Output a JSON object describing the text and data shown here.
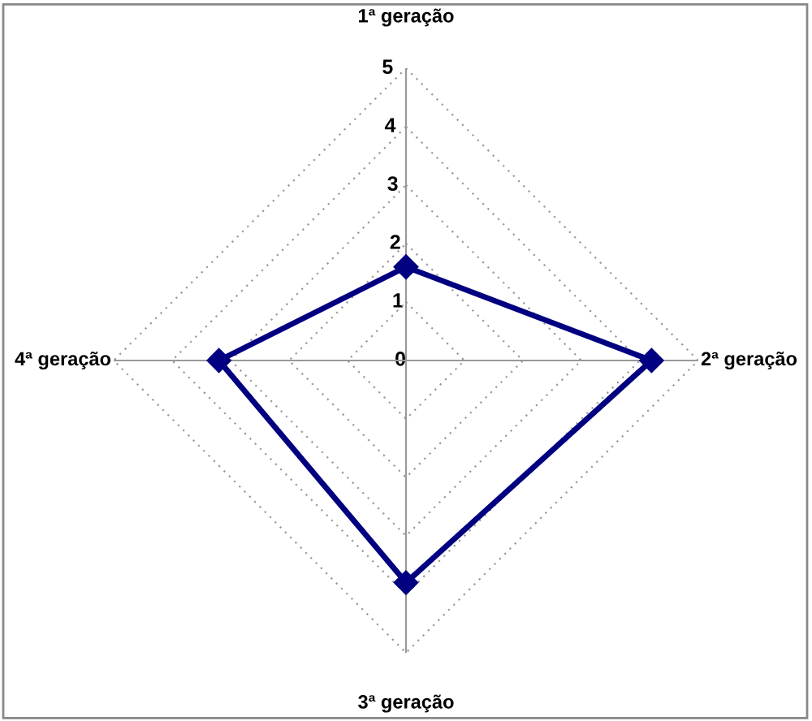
{
  "chart_data": {
    "type": "radar",
    "categories": [
      "1ª geração",
      "2ª geração",
      "3ª geração",
      "4ª geração"
    ],
    "series": [
      {
        "color": "#000080",
        "values": [
          1.6,
          4.2,
          3.8,
          3.2
        ]
      }
    ],
    "ylim": [
      0,
      5
    ],
    "yticks": [
      0,
      1,
      2,
      3,
      4,
      5
    ],
    "grid": true,
    "marker": "diamond",
    "line_style": "solid"
  }
}
